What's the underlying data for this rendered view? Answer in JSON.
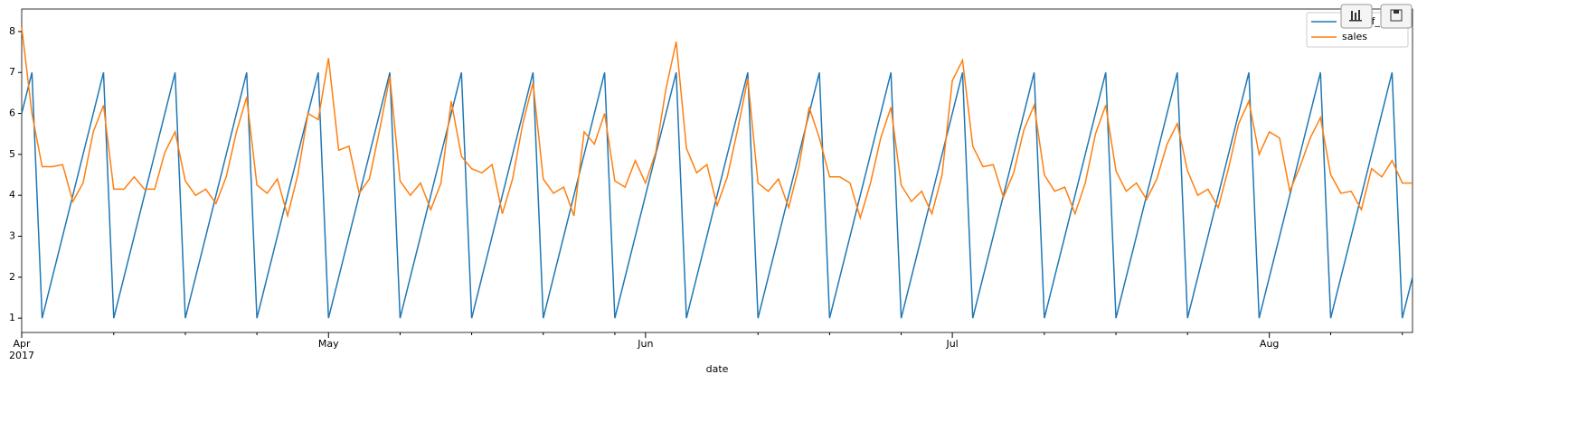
{
  "chart_data": {
    "type": "line",
    "xlabel": "date",
    "x": [
      0,
      1,
      2,
      3,
      4,
      5,
      6,
      7,
      8,
      9,
      10,
      11,
      12,
      13,
      14,
      15,
      16,
      17,
      18,
      19,
      20,
      21,
      22,
      23,
      24,
      25,
      26,
      27,
      28,
      29,
      30,
      31,
      32,
      33,
      34,
      35,
      36,
      37,
      38,
      39,
      40,
      41,
      42,
      43,
      44,
      45,
      46,
      47,
      48,
      49,
      50,
      51,
      52,
      53,
      54,
      55,
      56,
      57,
      58,
      59,
      60,
      61,
      62,
      63,
      64,
      65,
      66,
      67,
      68,
      69,
      70,
      71,
      72,
      73,
      74,
      75,
      76,
      77,
      78,
      79,
      80,
      81,
      82,
      83,
      84,
      85,
      86,
      87,
      88,
      89,
      90,
      91,
      92,
      93,
      94,
      95,
      96,
      97,
      98,
      99,
      100,
      101,
      102,
      103,
      104,
      105,
      106,
      107,
      108,
      109,
      110,
      111,
      112,
      113,
      114,
      115,
      116,
      117,
      118,
      119,
      120,
      121,
      122,
      123,
      124,
      125,
      126,
      127,
      128,
      129,
      130,
      131,
      132,
      133,
      134,
      135,
      136
    ],
    "series": [
      {
        "name": "day_of_week",
        "color": "#1f77b4",
        "values": [
          6,
          7,
          1,
          2,
          3,
          4,
          5,
          6,
          7,
          1,
          2,
          3,
          4,
          5,
          6,
          7,
          1,
          2,
          3,
          4,
          5,
          6,
          7,
          1,
          2,
          3,
          4,
          5,
          6,
          7,
          1,
          2,
          3,
          4,
          5,
          6,
          7,
          1,
          2,
          3,
          4,
          5,
          6,
          7,
          1,
          2,
          3,
          4,
          5,
          6,
          7,
          1,
          2,
          3,
          4,
          5,
          6,
          7,
          1,
          2,
          3,
          4,
          5,
          6,
          7,
          1,
          2,
          3,
          4,
          5,
          6,
          7,
          1,
          2,
          3,
          4,
          5,
          6,
          7,
          1,
          2,
          3,
          4,
          5,
          6,
          7,
          1,
          2,
          3,
          4,
          5,
          6,
          7,
          1,
          2,
          3,
          4,
          5,
          6,
          7,
          1,
          2,
          3,
          4,
          5,
          6,
          7,
          1,
          2,
          3,
          4,
          5,
          6,
          7,
          1,
          2,
          3,
          4,
          5,
          6,
          7,
          1,
          2,
          3,
          4,
          5,
          6,
          7,
          1,
          2,
          3,
          4,
          5,
          6,
          7,
          1,
          2
        ]
      },
      {
        "name": "sales",
        "color": "#ff7f0e",
        "values": [
          8.1,
          6.0,
          4.7,
          4.7,
          4.75,
          3.85,
          4.3,
          5.55,
          6.2,
          4.15,
          4.15,
          4.45,
          4.15,
          4.15,
          5.05,
          5.55,
          4.35,
          4.0,
          4.15,
          3.8,
          4.45,
          5.55,
          6.4,
          4.25,
          4.05,
          4.4,
          3.5,
          4.5,
          6.0,
          5.85,
          7.35,
          5.1,
          5.2,
          4.05,
          4.4,
          5.6,
          6.9,
          4.35,
          4.0,
          4.3,
          3.65,
          4.3,
          6.3,
          4.95,
          4.65,
          4.55,
          4.75,
          3.55,
          4.4,
          5.75,
          6.75,
          4.4,
          4.05,
          4.2,
          3.5,
          5.55,
          5.25,
          6.0,
          4.35,
          4.2,
          4.85,
          4.3,
          5.05,
          6.6,
          7.75,
          5.15,
          4.55,
          4.75,
          3.75,
          4.45,
          5.6,
          6.85,
          4.3,
          4.1,
          4.4,
          3.7,
          4.7,
          6.15,
          5.4,
          4.45,
          4.45,
          4.3,
          3.45,
          4.3,
          5.4,
          6.15,
          4.25,
          3.85,
          4.1,
          3.55,
          4.5,
          6.8,
          7.3,
          5.2,
          4.7,
          4.75,
          3.95,
          4.55,
          5.6,
          6.2,
          4.5,
          4.1,
          4.2,
          3.55,
          4.3,
          5.5,
          6.2,
          4.6,
          4.1,
          4.3,
          3.9,
          4.4,
          5.25,
          5.75,
          4.6,
          4.0,
          4.15,
          3.7,
          4.65,
          5.75,
          6.3,
          5.0,
          5.55,
          5.4,
          4.1,
          4.7,
          5.4,
          5.9,
          4.5,
          4.05,
          4.1,
          3.65,
          4.65,
          4.45,
          4.85,
          4.3,
          4.3
        ]
      }
    ],
    "xlim": [
      0,
      136
    ],
    "xticks": [
      {
        "value": 0,
        "label": "Apr"
      },
      {
        "value": 30,
        "label": "May"
      },
      {
        "value": 61,
        "label": "Jun"
      },
      {
        "value": 91,
        "label": "Jul"
      },
      {
        "value": 122,
        "label": "Aug"
      }
    ],
    "xtick_year": "2017",
    "xminorticks": [
      9,
      16,
      23,
      37,
      44,
      51,
      58,
      72,
      79,
      86,
      100,
      107,
      114,
      128,
      135
    ],
    "ylim": [
      0.65,
      8.55
    ],
    "yticks": [
      1,
      2,
      3,
      4,
      5,
      6,
      7,
      8
    ],
    "legend": "upper right"
  }
}
